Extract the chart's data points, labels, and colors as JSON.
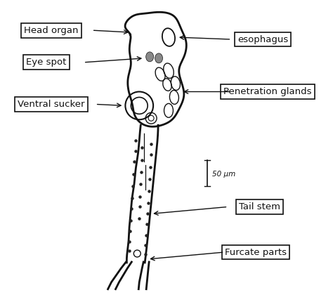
{
  "bg_color": "#ffffff",
  "line_color": "#111111",
  "labels": {
    "head_organ": "Head organ",
    "eye_spot": "Eye spot",
    "ventral_sucker": "Ventral sucker",
    "esophagus": "esophagus",
    "penetration_glands": "Penetration glands",
    "tail_stem": "Tail stem",
    "furcate_parts": "Furcate parts",
    "scale": "50 μm"
  },
  "figsize": [
    4.74,
    4.2
  ],
  "dpi": 100
}
